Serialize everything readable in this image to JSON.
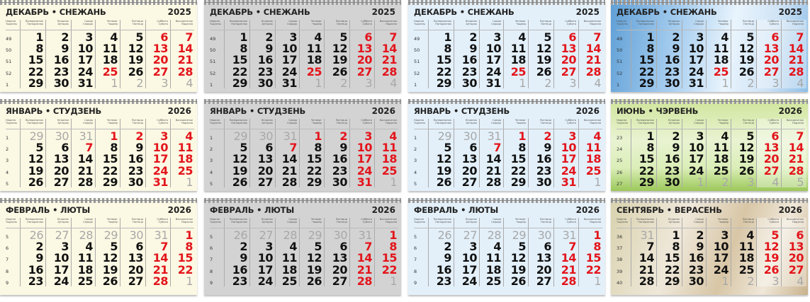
{
  "day_headers": [
    {
      "ru": "Неделя",
      "by": "Тыдзень"
    },
    {
      "ru": "Понедельник",
      "by": "Панядзелак"
    },
    {
      "ru": "Вторник",
      "by": "Аўторак"
    },
    {
      "ru": "Среда",
      "by": "Серада"
    },
    {
      "ru": "Четверг",
      "by": "Чацвер"
    },
    {
      "ru": "Пятница",
      "by": "Пятніца"
    },
    {
      "ru": "Суббота",
      "by": "Субота"
    },
    {
      "ru": "Воскресенье",
      "by": "Нядзеля"
    }
  ],
  "colors": {
    "weekday": "#111111",
    "holiday": "#e3141b",
    "other_month": "#a8a8a8"
  },
  "months": {
    "dec": {
      "title": "ДЕКАБРЬ • СНЕЖАНЬ",
      "year": "2025",
      "weeks": [
        "49",
        "50",
        "51",
        "52",
        "1"
      ],
      "rows": [
        [
          1,
          2,
          3,
          4,
          5,
          6,
          7
        ],
        [
          8,
          9,
          10,
          11,
          12,
          13,
          14
        ],
        [
          15,
          16,
          17,
          18,
          19,
          20,
          21
        ],
        [
          22,
          23,
          24,
          25,
          26,
          27,
          28
        ],
        [
          29,
          30,
          31,
          1,
          2,
          3,
          4
        ]
      ],
      "types": [
        "bbbbbrr",
        "bbbbbrr",
        "bbbbbrr",
        "bbbrbrr",
        "bbboooo"
      ]
    },
    "jan": {
      "title": "ЯНВАРЬ • СТУДЗЕНЬ",
      "year": "2026",
      "weeks": [
        "1",
        "2",
        "3",
        "4",
        "5"
      ],
      "rows": [
        [
          29,
          30,
          31,
          1,
          2,
          3,
          4
        ],
        [
          5,
          6,
          7,
          8,
          9,
          10,
          11
        ],
        [
          12,
          13,
          14,
          15,
          16,
          17,
          18
        ],
        [
          19,
          20,
          21,
          22,
          23,
          24,
          25
        ],
        [
          26,
          27,
          28,
          29,
          30,
          31,
          1
        ]
      ],
      "types": [
        "ooorrrr",
        "bbrbbrr",
        "bbbbbrr",
        "bbbbbrr",
        "bbbbbro"
      ]
    },
    "feb": {
      "title": "ФЕВРАЛЬ • ЛЮТЫ",
      "year": "2026",
      "weeks": [
        "5",
        "6",
        "7",
        "8",
        "9"
      ],
      "rows": [
        [
          26,
          27,
          28,
          29,
          30,
          31,
          1
        ],
        [
          2,
          3,
          4,
          5,
          6,
          7,
          8
        ],
        [
          9,
          10,
          11,
          12,
          13,
          14,
          15
        ],
        [
          16,
          17,
          18,
          19,
          20,
          21,
          22
        ],
        [
          23,
          24,
          25,
          26,
          27,
          28,
          1
        ]
      ],
      "types": [
        "oooooor",
        "bbbbbrr",
        "bbbbbrr",
        "bbbbbrr",
        "bbbbbro"
      ]
    },
    "jun": {
      "title": "ИЮНЬ • ЧЭРВЕНЬ",
      "year": "2026",
      "weeks": [
        "23",
        "24",
        "25",
        "26",
        "27"
      ],
      "rows": [
        [
          1,
          2,
          3,
          4,
          5,
          6,
          7
        ],
        [
          8,
          9,
          10,
          11,
          12,
          13,
          14
        ],
        [
          15,
          16,
          17,
          18,
          19,
          20,
          21
        ],
        [
          22,
          23,
          24,
          25,
          26,
          27,
          28
        ],
        [
          29,
          30,
          1,
          2,
          3,
          4,
          5
        ]
      ],
      "types": [
        "bbbbbrr",
        "bbbbbrr",
        "bbbbbrr",
        "bbbbbrr",
        "bbooooo"
      ]
    },
    "sep": {
      "title": "СЕНТЯБРЬ • ВЕРАСЕНЬ",
      "year": "2026",
      "weeks": [
        "36",
        "37",
        "38",
        "39",
        "40"
      ],
      "rows": [
        [
          31,
          1,
          2,
          3,
          4,
          5,
          6
        ],
        [
          7,
          8,
          9,
          10,
          11,
          12,
          13
        ],
        [
          14,
          15,
          16,
          17,
          18,
          19,
          20
        ],
        [
          21,
          22,
          23,
          24,
          25,
          26,
          27
        ],
        [
          28,
          29,
          30,
          1,
          2,
          3,
          4
        ]
      ],
      "types": [
        "obbbbrr",
        "bbbbbrr",
        "bbbbbrr",
        "bbbbbrr",
        "bbboooo"
      ]
    }
  },
  "panels": [
    {
      "theme": "cream",
      "background": "#fbf8e3",
      "months": [
        "dec",
        "jan",
        "feb"
      ]
    },
    {
      "theme": "gray",
      "background": "#d3d3d3",
      "months": [
        "dec",
        "jan",
        "feb"
      ]
    },
    {
      "theme": "light-blue",
      "background": "#e3f0fa",
      "months": [
        "dec",
        "jan",
        "feb"
      ]
    },
    {
      "theme": "photo",
      "backgrounds": [
        "winter-snowman",
        "green-meadow",
        "autumn-beige"
      ],
      "months": [
        "dec",
        "jun",
        "sep"
      ]
    }
  ]
}
